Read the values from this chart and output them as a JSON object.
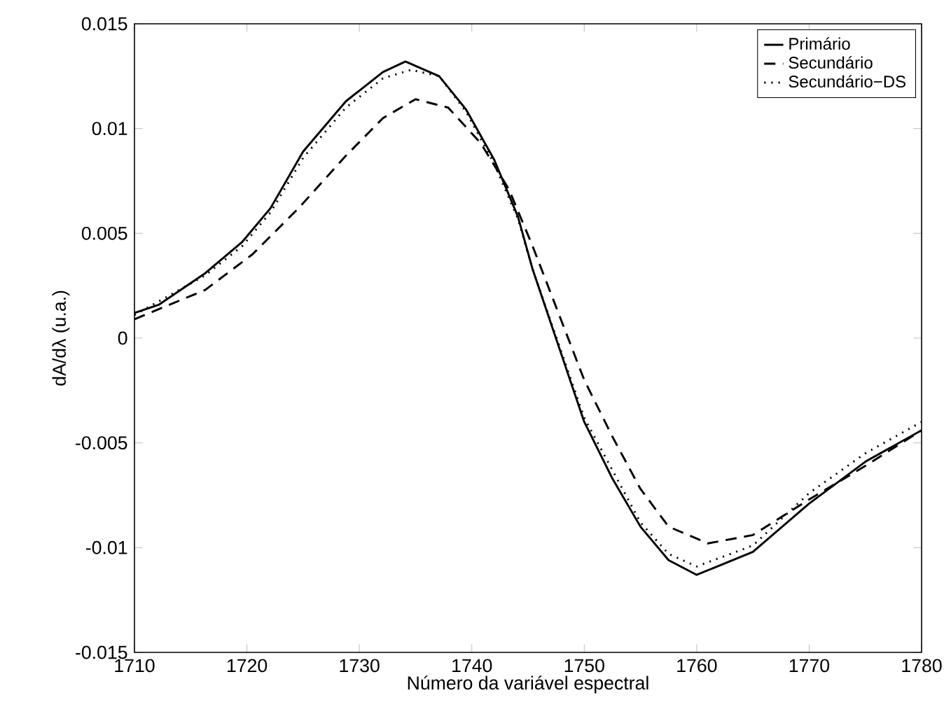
{
  "chart_data": {
    "type": "line",
    "xlabel": "Número da variável espectral",
    "ylabel": "dA/dλ (u.a.)",
    "xlim": [
      1710,
      1780
    ],
    "xticks": [
      1710,
      1720,
      1730,
      1740,
      1750,
      1760,
      1770,
      1780
    ],
    "ylim": [
      -0.015,
      0.015
    ],
    "yticks": [
      -0.015,
      -0.01,
      -0.005,
      0,
      0.005,
      0.01,
      0.015
    ],
    "legend": "top right",
    "grid": false,
    "marker": "none",
    "series": [
      {
        "name": "Primário",
        "color": "#000000",
        "line_style": "solid",
        "x": [
          1710,
          1712.2,
          1716.3,
          1719.6,
          1722.1,
          1725.0,
          1728.8,
          1732.1,
          1734.1,
          1737.1,
          1739.5,
          1742.0,
          1744.1,
          1745.4,
          1750,
          1752.5,
          1755,
          1757.5,
          1760,
          1765,
          1770,
          1775,
          1780
        ],
        "values": [
          0.0012,
          0.0016,
          0.0031,
          0.0046,
          0.0062,
          0.0089,
          0.0113,
          0.0127,
          0.0132,
          0.0125,
          0.0109,
          0.0085,
          0.0058,
          0.0033,
          -0.004,
          -0.0067,
          -0.009,
          -0.0106,
          -0.0113,
          -0.0102,
          -0.0079,
          -0.0059,
          -0.0044
        ]
      },
      {
        "name": "Secundário",
        "color": "#000000",
        "line_style": "dashed",
        "x": [
          1710,
          1716.3,
          1720.5,
          1724.6,
          1728.8,
          1732.1,
          1735.0,
          1737.9,
          1740.8,
          1743.3,
          1745.4,
          1750,
          1752.5,
          1755,
          1757.5,
          1761,
          1765,
          1770,
          1775,
          1780
        ],
        "values": [
          0.0009,
          0.0023,
          0.004,
          0.0062,
          0.0087,
          0.0105,
          0.0114,
          0.011,
          0.0093,
          0.0071,
          0.0044,
          -0.002,
          -0.0047,
          -0.0072,
          -0.009,
          -0.0098,
          -0.0094,
          -0.0077,
          -0.0061,
          -0.0044
        ]
      },
      {
        "name": "Secundário−DS",
        "color": "#000000",
        "line_style": "dotted",
        "x": [
          1710,
          1716.3,
          1719.6,
          1722.1,
          1725.0,
          1728.8,
          1732.1,
          1734.6,
          1737.1,
          1739.5,
          1742.0,
          1744.1,
          1745.4,
          1750,
          1755,
          1757.5,
          1760,
          1765,
          1770,
          1775,
          1780
        ],
        "values": [
          0.0011,
          0.003,
          0.0044,
          0.006,
          0.0086,
          0.011,
          0.0124,
          0.0128,
          0.0125,
          0.0108,
          0.0083,
          0.0057,
          0.0033,
          -0.0038,
          -0.0088,
          -0.0103,
          -0.0109,
          -0.0099,
          -0.0074,
          -0.0055,
          -0.004
        ]
      }
    ]
  }
}
